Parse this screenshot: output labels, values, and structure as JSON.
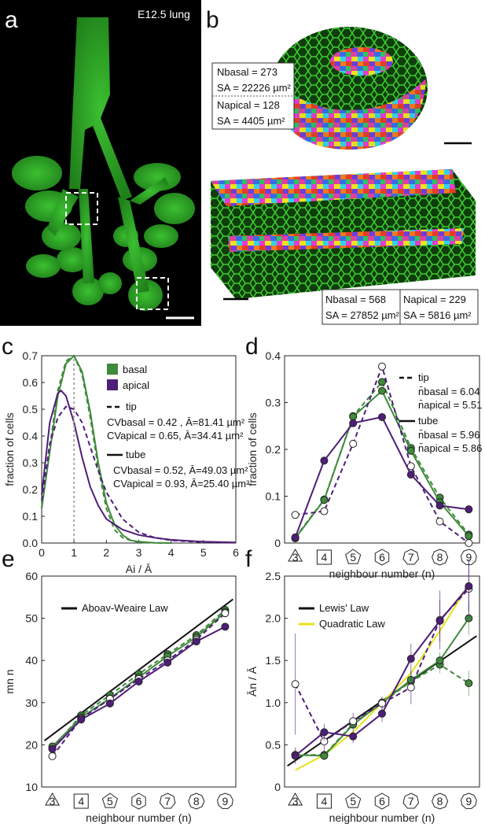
{
  "panels": {
    "a": {
      "label": "a",
      "title": "E12.5 lung"
    },
    "b": {
      "label": "b",
      "box1": {
        "n_basal": "Nbasal = 273",
        "sa_basal": "SA = 22226 µm²",
        "n_apical": "Napical = 128",
        "sa_apical": "SA = 4405 µm²"
      },
      "box2": {
        "n_basal": "Nbasal = 568",
        "sa_basal": "SA = 27852 µm²",
        "n_apical": "Napical = 229",
        "sa_apical": "SA = 5816 µm²"
      }
    },
    "c": {
      "label": "c"
    },
    "d": {
      "label": "d"
    },
    "e": {
      "label": "e"
    },
    "f": {
      "label": "f"
    }
  },
  "colors": {
    "green": "#3f8a3c",
    "purple": "#4f1e78",
    "yellow": "#e5e21b",
    "black": "#111111",
    "micro_bg": "#000000",
    "tissue": "#2fa82a"
  },
  "chart_data": [
    {
      "panel": "c",
      "type": "line",
      "xlabel": "Ai / Ā",
      "ylabel": "fraction of cells",
      "xlim": [
        0,
        6
      ],
      "ylim": [
        0,
        0.7
      ],
      "xticks": [
        "0",
        "1",
        "2",
        "3",
        "4",
        "5",
        "6"
      ],
      "yticks": [
        "0.0",
        "0.1",
        "0.2",
        "0.3",
        "0.4",
        "0.5",
        "0.6",
        "0.7"
      ],
      "legend": {
        "basal": "basal",
        "apical": "apical",
        "tip": "tip",
        "tube": "tube"
      },
      "annotations": {
        "tip_basal": "CVbasal = 0.42 , Ā=81.41 µm²",
        "tip_apical": "CVapical = 0.65, Ā=34.41 µm²",
        "tube_basal": "CVbasal = 0.52, Ā=49.03 µm²",
        "tube_apical": "CVapical = 0.93, Ā=25.40 µm²"
      },
      "series": [
        {
          "name": "basal tip",
          "style": "dashed",
          "color": "green",
          "x": [
            0,
            0.25,
            0.5,
            0.75,
            1.0,
            1.25,
            1.5,
            1.75,
            2.0,
            2.25,
            2.5,
            2.75,
            3.0,
            3.5,
            4.0
          ],
          "y": [
            0.13,
            0.36,
            0.57,
            0.68,
            0.7,
            0.63,
            0.47,
            0.28,
            0.13,
            0.05,
            0.02,
            0.01,
            0.003,
            0.001,
            0
          ]
        },
        {
          "name": "basal tube",
          "style": "solid",
          "color": "green",
          "x": [
            0,
            0.25,
            0.5,
            0.75,
            1.0,
            1.25,
            1.5,
            1.75,
            2.0,
            2.25,
            2.5,
            2.75,
            3.0,
            3.5,
            4.0
          ],
          "y": [
            0.13,
            0.34,
            0.55,
            0.67,
            0.7,
            0.64,
            0.49,
            0.3,
            0.15,
            0.07,
            0.03,
            0.01,
            0.005,
            0.001,
            0
          ]
        },
        {
          "name": "apical tip",
          "style": "dashed",
          "color": "purple",
          "x": [
            0,
            0.25,
            0.5,
            0.75,
            1.0,
            1.25,
            1.5,
            1.75,
            2.0,
            2.5,
            3.0,
            3.5,
            4.0,
            5.0,
            6.0
          ],
          "y": [
            0.16,
            0.37,
            0.47,
            0.51,
            0.5,
            0.45,
            0.36,
            0.27,
            0.19,
            0.09,
            0.04,
            0.02,
            0.01,
            0.003,
            0.001
          ]
        },
        {
          "name": "apical tube",
          "style": "solid",
          "color": "purple",
          "x": [
            0,
            0.25,
            0.5,
            0.6,
            0.75,
            1.0,
            1.25,
            1.5,
            1.75,
            2.0,
            2.5,
            3.0,
            3.5,
            4.0,
            5.0,
            6.0
          ],
          "y": [
            0.18,
            0.45,
            0.56,
            0.57,
            0.55,
            0.45,
            0.32,
            0.21,
            0.14,
            0.09,
            0.05,
            0.03,
            0.02,
            0.012,
            0.005,
            0.002
          ]
        }
      ]
    },
    {
      "panel": "d",
      "type": "line",
      "xlabel": "neighbour number (n)",
      "ylabel": "fraction of cells",
      "categories": [
        "3",
        "4",
        "5",
        "6",
        "7",
        "8",
        "9"
      ],
      "ylim": [
        0,
        0.4
      ],
      "yticks": [
        "0",
        "0.1",
        "0.2",
        "0.3",
        "0.4"
      ],
      "legend": {
        "tip": "tip",
        "tube": "tube"
      },
      "annotations": {
        "tip_basal": "n̄basal = 6.04",
        "tip_apical": "n̄apical = 5.51",
        "tube_basal": "n̄basal = 5.96",
        "tube_apical": "n̄apical = 5.86"
      },
      "series": [
        {
          "name": "basal tip",
          "style": "dashed",
          "color": "green",
          "marker": "filled",
          "values": [
            0.012,
            0.093,
            0.271,
            0.344,
            0.203,
            0.097,
            0.018
          ]
        },
        {
          "name": "basal tube",
          "style": "solid",
          "color": "green",
          "marker": "filled",
          "values": [
            0.01,
            0.092,
            0.27,
            0.325,
            0.197,
            0.087,
            0.015
          ]
        },
        {
          "name": "apical tip",
          "style": "dashed",
          "color": "purple",
          "marker": "open",
          "values": [
            0.06,
            0.068,
            0.212,
            0.377,
            0.164,
            0.046,
            0.0
          ]
        },
        {
          "name": "apical tube",
          "style": "solid",
          "color": "purple",
          "marker": "filled",
          "values": [
            0.012,
            0.176,
            0.256,
            0.269,
            0.146,
            0.08,
            0.072
          ]
        }
      ]
    },
    {
      "panel": "e",
      "type": "line",
      "xlabel": "neighbour number (n)",
      "ylabel": "mn n",
      "categories": [
        "3",
        "4",
        "5",
        "6",
        "7",
        "8",
        "9"
      ],
      "ylim": [
        10,
        60
      ],
      "yticks": [
        "10",
        "20",
        "30",
        "40",
        "50",
        "60"
      ],
      "legend": {
        "aboav": "Aboav-Weaire Law"
      },
      "series": [
        {
          "name": "Aboav-Weaire Law",
          "style": "solid",
          "color": "black",
          "fit": [
            21.0,
            54.5
          ]
        },
        {
          "name": "basal tip",
          "style": "dashed",
          "color": "green",
          "marker": "filled",
          "values": [
            19.2,
            27.0,
            31.8,
            36.8,
            41.5,
            46.0,
            52.0
          ]
        },
        {
          "name": "basal tube",
          "style": "solid",
          "color": "green",
          "marker": "filled",
          "values": [
            19.6,
            26.5,
            31.0,
            36.0,
            41.0,
            45.5,
            51.5
          ]
        },
        {
          "name": "apical tip",
          "style": "dashed",
          "color": "purple",
          "marker": "open",
          "values": [
            17.3,
            26.2,
            30.9,
            35.6,
            40.0,
            44.9,
            51.2
          ]
        },
        {
          "name": "apical tube",
          "style": "solid",
          "color": "purple",
          "marker": "filled",
          "values": [
            19.0,
            26.0,
            29.8,
            35.0,
            39.5,
            44.5,
            48.0
          ]
        }
      ]
    },
    {
      "panel": "f",
      "type": "line",
      "xlabel": "neighbour number (n)",
      "ylabel": "Ān / Ā",
      "categories": [
        "3",
        "4",
        "5",
        "6",
        "7",
        "8",
        "9"
      ],
      "ylim": [
        0,
        2.5
      ],
      "yticks": [
        "0",
        "0.5",
        "1.0",
        "1.5",
        "2.0",
        "2.5"
      ],
      "legend": {
        "lewis": "Lewis' Law",
        "quadratic": "Quadratic Law"
      },
      "series": [
        {
          "name": "Lewis' Law",
          "style": "solid",
          "color": "black",
          "fit": [
            0.25,
            1.79
          ]
        },
        {
          "name": "Quadratic Law",
          "style": "solid",
          "color": "yellow",
          "values": [
            0.2,
            0.38,
            0.65,
            1.0,
            1.35,
            1.85,
            2.4
          ]
        },
        {
          "name": "basal tip",
          "style": "dashed",
          "color": "green",
          "marker": "filled",
          "values": [
            0.38,
            0.38,
            0.75,
            1.0,
            1.25,
            1.45,
            1.23
          ],
          "err": [
            0.06,
            0.05,
            0.05,
            0.06,
            0.08,
            0.1,
            0.15
          ]
        },
        {
          "name": "basal tube",
          "style": "solid",
          "color": "green",
          "marker": "filled",
          "values": [
            0.38,
            0.37,
            0.74,
            1.0,
            1.27,
            1.5,
            2.0
          ],
          "err": [
            0.06,
            0.05,
            0.05,
            0.06,
            0.08,
            0.1,
            0.2
          ]
        },
        {
          "name": "apical tip",
          "style": "dashed",
          "color": "purple",
          "marker": "open",
          "values": [
            1.22,
            0.54,
            0.78,
            0.99,
            1.18,
            1.98,
            2.35
          ],
          "err": [
            0.6,
            0.15,
            0.1,
            0.08,
            0.2,
            0.35,
            0.35
          ]
        },
        {
          "name": "apical tube",
          "style": "solid",
          "color": "purple",
          "marker": "filled",
          "values": [
            0.37,
            0.65,
            0.6,
            0.87,
            1.52,
            1.97,
            2.38
          ],
          "err": [
            0.1,
            0.1,
            0.08,
            0.1,
            0.18,
            0.25,
            0.3
          ]
        }
      ]
    }
  ]
}
